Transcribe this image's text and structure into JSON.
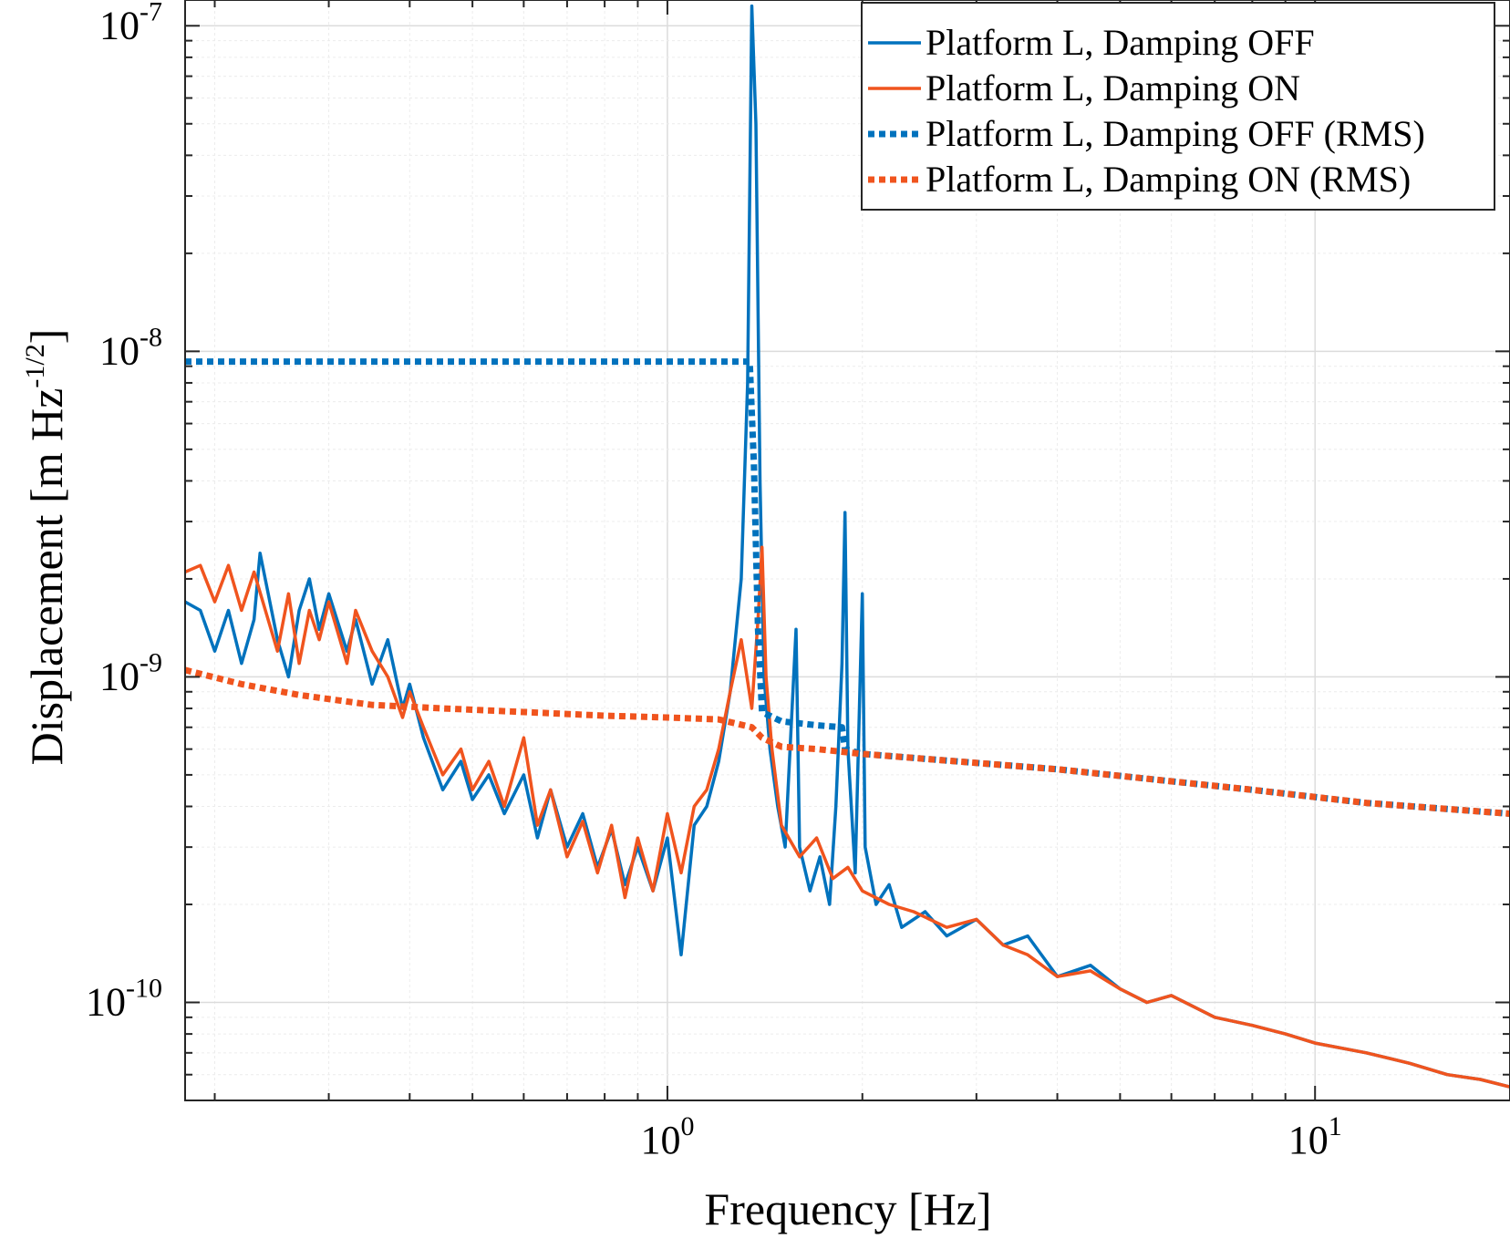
{
  "chart_data": {
    "type": "line",
    "xscale": "log",
    "yscale": "log",
    "xlim": [
      0.18,
      20
    ],
    "ylim": [
      5e-11,
      1.2e-07
    ],
    "xlabel": "Frequency [Hz]",
    "ylabel_main": "Displacement [m Hz",
    "ylabel_exp": "-1/2",
    "ylabel_close": "]",
    "grid": true,
    "legend_position": "top-right",
    "x_ticks": [
      {
        "value": 1,
        "base": "10",
        "exp": "0"
      },
      {
        "value": 10,
        "base": "10",
        "exp": "1"
      }
    ],
    "y_ticks": [
      {
        "value": 1e-07,
        "base": "10",
        "exp": "-7"
      },
      {
        "value": 1e-08,
        "base": "10",
        "exp": "-8"
      },
      {
        "value": 1e-09,
        "base": "10",
        "exp": "-9"
      },
      {
        "value": 1e-10,
        "base": "10",
        "exp": "-10"
      }
    ],
    "series": [
      {
        "name": "Platform L, Damping OFF",
        "color": "#0072BD",
        "style": "solid",
        "points": [
          [
            0.18,
            1.7e-09
          ],
          [
            0.19,
            1.6e-09
          ],
          [
            0.2,
            1.2e-09
          ],
          [
            0.21,
            1.6e-09
          ],
          [
            0.22,
            1.1e-09
          ],
          [
            0.23,
            1.5e-09
          ],
          [
            0.235,
            2.4e-09
          ],
          [
            0.25,
            1.3e-09
          ],
          [
            0.26,
            1e-09
          ],
          [
            0.27,
            1.6e-09
          ],
          [
            0.28,
            2e-09
          ],
          [
            0.29,
            1.4e-09
          ],
          [
            0.3,
            1.8e-09
          ],
          [
            0.32,
            1.2e-09
          ],
          [
            0.33,
            1.5e-09
          ],
          [
            0.35,
            9.5e-10
          ],
          [
            0.37,
            1.3e-09
          ],
          [
            0.39,
            8e-10
          ],
          [
            0.4,
            9.5e-10
          ],
          [
            0.42,
            6.5e-10
          ],
          [
            0.45,
            4.5e-10
          ],
          [
            0.48,
            5.5e-10
          ],
          [
            0.5,
            4.2e-10
          ],
          [
            0.53,
            5e-10
          ],
          [
            0.56,
            3.8e-10
          ],
          [
            0.6,
            5e-10
          ],
          [
            0.63,
            3.2e-10
          ],
          [
            0.66,
            4.5e-10
          ],
          [
            0.7,
            3e-10
          ],
          [
            0.74,
            3.8e-10
          ],
          [
            0.78,
            2.6e-10
          ],
          [
            0.82,
            3.4e-10
          ],
          [
            0.86,
            2.3e-10
          ],
          [
            0.9,
            3e-10
          ],
          [
            0.95,
            2.2e-10
          ],
          [
            1.0,
            3.2e-10
          ],
          [
            1.05,
            1.4e-10
          ],
          [
            1.1,
            3.5e-10
          ],
          [
            1.15,
            4e-10
          ],
          [
            1.2,
            5.5e-10
          ],
          [
            1.25,
            9e-10
          ],
          [
            1.3,
            2e-09
          ],
          [
            1.33,
            8e-09
          ],
          [
            1.35,
            1.15e-07
          ],
          [
            1.37,
            5e-08
          ],
          [
            1.39,
            4e-09
          ],
          [
            1.41,
            1e-09
          ],
          [
            1.44,
            6e-10
          ],
          [
            1.48,
            4e-10
          ],
          [
            1.52,
            3e-10
          ],
          [
            1.58,
            1.4e-09
          ],
          [
            1.6,
            3e-10
          ],
          [
            1.66,
            2.2e-10
          ],
          [
            1.72,
            2.8e-10
          ],
          [
            1.78,
            2e-10
          ],
          [
            1.82,
            4e-10
          ],
          [
            1.86,
            1.1e-09
          ],
          [
            1.88,
            3.2e-09
          ],
          [
            1.9,
            6e-10
          ],
          [
            1.95,
            2.5e-10
          ],
          [
            2.0,
            1.8e-09
          ],
          [
            2.02,
            3e-10
          ],
          [
            2.1,
            2e-10
          ],
          [
            2.2,
            2.3e-10
          ],
          [
            2.3,
            1.7e-10
          ],
          [
            2.5,
            1.9e-10
          ],
          [
            2.7,
            1.6e-10
          ],
          [
            3.0,
            1.8e-10
          ],
          [
            3.3,
            1.5e-10
          ],
          [
            3.6,
            1.6e-10
          ],
          [
            4.0,
            1.2e-10
          ],
          [
            4.5,
            1.3e-10
          ],
          [
            5.0,
            1.1e-10
          ],
          [
            5.5,
            1e-10
          ],
          [
            6.0,
            1.05e-10
          ],
          [
            7.0,
            9e-11
          ],
          [
            8.0,
            8.5e-11
          ],
          [
            9.0,
            8e-11
          ],
          [
            10.0,
            7.5e-11
          ],
          [
            12.0,
            7e-11
          ],
          [
            14.0,
            6.5e-11
          ],
          [
            16.0,
            6e-11
          ],
          [
            18.0,
            5.8e-11
          ],
          [
            20.0,
            5.5e-11
          ]
        ]
      },
      {
        "name": "Platform L, Damping ON",
        "color": "#F0541E",
        "style": "solid",
        "points": [
          [
            0.18,
            2.1e-09
          ],
          [
            0.19,
            2.2e-09
          ],
          [
            0.2,
            1.7e-09
          ],
          [
            0.21,
            2.2e-09
          ],
          [
            0.22,
            1.6e-09
          ],
          [
            0.23,
            2.1e-09
          ],
          [
            0.25,
            1.2e-09
          ],
          [
            0.26,
            1.8e-09
          ],
          [
            0.27,
            1.1e-09
          ],
          [
            0.28,
            1.6e-09
          ],
          [
            0.29,
            1.3e-09
          ],
          [
            0.3,
            1.7e-09
          ],
          [
            0.32,
            1.1e-09
          ],
          [
            0.33,
            1.6e-09
          ],
          [
            0.35,
            1.2e-09
          ],
          [
            0.37,
            1e-09
          ],
          [
            0.39,
            7.5e-10
          ],
          [
            0.4,
            9e-10
          ],
          [
            0.42,
            7e-10
          ],
          [
            0.45,
            5e-10
          ],
          [
            0.48,
            6e-10
          ],
          [
            0.5,
            4.5e-10
          ],
          [
            0.53,
            5.5e-10
          ],
          [
            0.56,
            4e-10
          ],
          [
            0.6,
            6.5e-10
          ],
          [
            0.63,
            3.5e-10
          ],
          [
            0.66,
            4.5e-10
          ],
          [
            0.7,
            2.8e-10
          ],
          [
            0.74,
            3.6e-10
          ],
          [
            0.78,
            2.5e-10
          ],
          [
            0.82,
            3.5e-10
          ],
          [
            0.86,
            2.1e-10
          ],
          [
            0.9,
            3.2e-10
          ],
          [
            0.95,
            2.2e-10
          ],
          [
            1.0,
            3.8e-10
          ],
          [
            1.05,
            2.5e-10
          ],
          [
            1.1,
            4e-10
          ],
          [
            1.15,
            4.5e-10
          ],
          [
            1.2,
            6e-10
          ],
          [
            1.25,
            9e-10
          ],
          [
            1.3,
            1.3e-09
          ],
          [
            1.35,
            8e-10
          ],
          [
            1.38,
            1.5e-09
          ],
          [
            1.4,
            2.5e-09
          ],
          [
            1.42,
            1e-09
          ],
          [
            1.45,
            6e-10
          ],
          [
            1.5,
            3.5e-10
          ],
          [
            1.6,
            2.8e-10
          ],
          [
            1.7,
            3.2e-10
          ],
          [
            1.8,
            2.4e-10
          ],
          [
            1.9,
            2.6e-10
          ],
          [
            2.0,
            2.2e-10
          ],
          [
            2.2,
            2e-10
          ],
          [
            2.4,
            1.9e-10
          ],
          [
            2.7,
            1.7e-10
          ],
          [
            3.0,
            1.8e-10
          ],
          [
            3.3,
            1.5e-10
          ],
          [
            3.6,
            1.4e-10
          ],
          [
            4.0,
            1.2e-10
          ],
          [
            4.5,
            1.25e-10
          ],
          [
            5.0,
            1.1e-10
          ],
          [
            5.5,
            1e-10
          ],
          [
            6.0,
            1.05e-10
          ],
          [
            7.0,
            9e-11
          ],
          [
            8.0,
            8.5e-11
          ],
          [
            9.0,
            8e-11
          ],
          [
            10.0,
            7.5e-11
          ],
          [
            12.0,
            7e-11
          ],
          [
            14.0,
            6.5e-11
          ],
          [
            16.0,
            6e-11
          ],
          [
            18.0,
            5.8e-11
          ],
          [
            20.0,
            5.5e-11
          ]
        ]
      },
      {
        "name": "Platform L, Damping OFF (RMS)",
        "color": "#0072BD",
        "style": "dotted",
        "points": [
          [
            0.18,
            9.3e-09
          ],
          [
            1.34,
            9.3e-09
          ],
          [
            1.36,
            4.5e-09
          ],
          [
            1.38,
            1.4e-09
          ],
          [
            1.4,
            7.8e-10
          ],
          [
            1.5,
            7.3e-10
          ],
          [
            1.7,
            7.1e-10
          ],
          [
            1.86,
            7e-10
          ],
          [
            1.88,
            6e-10
          ],
          [
            2.0,
            5.8e-10
          ],
          [
            4.0,
            5.2e-10
          ],
          [
            8.0,
            4.5e-10
          ],
          [
            12.0,
            4.1e-10
          ],
          [
            20.0,
            3.8e-10
          ]
        ]
      },
      {
        "name": "Platform L, Damping ON (RMS)",
        "color": "#F0541E",
        "style": "dotted",
        "points": [
          [
            0.18,
            1.05e-09
          ],
          [
            0.22,
            9.5e-10
          ],
          [
            0.27,
            8.8e-10
          ],
          [
            0.35,
            8.2e-10
          ],
          [
            0.45,
            8e-10
          ],
          [
            0.6,
            7.8e-10
          ],
          [
            0.8,
            7.6e-10
          ],
          [
            1.0,
            7.5e-10
          ],
          [
            1.2,
            7.4e-10
          ],
          [
            1.35,
            7e-10
          ],
          [
            1.4,
            6.5e-10
          ],
          [
            1.5,
            6.1e-10
          ],
          [
            1.7,
            6e-10
          ],
          [
            2.0,
            5.8e-10
          ],
          [
            4.0,
            5.2e-10
          ],
          [
            8.0,
            4.5e-10
          ],
          [
            12.0,
            4.1e-10
          ],
          [
            20.0,
            3.8e-10
          ]
        ]
      }
    ]
  }
}
